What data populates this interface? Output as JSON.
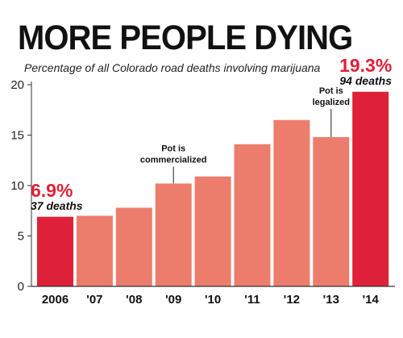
{
  "chart_data": {
    "type": "bar",
    "title": "MORE PEOPLE DYING",
    "subtitle": "Percentage of all Colorado road deaths involving marijuana",
    "categories": [
      "2006",
      "'07",
      "'08",
      "'09",
      "'10",
      "'11",
      "'12",
      "'13",
      "'14"
    ],
    "values": [
      6.9,
      7.0,
      7.8,
      10.2,
      10.9,
      14.1,
      16.5,
      14.8,
      19.3
    ],
    "highlighted": [
      true,
      false,
      false,
      false,
      false,
      false,
      false,
      false,
      true
    ],
    "ylim": [
      0,
      20
    ],
    "yticks": [
      "0",
      "5",
      "10",
      "15",
      "20"
    ],
    "xlabel": "",
    "ylabel": "",
    "grid": false,
    "colors": {
      "bar": "#ec7d6c",
      "highlight": "#de2138",
      "text": "#111111"
    },
    "callouts": [
      {
        "category_index": 0,
        "value_label": "6.9%",
        "deaths_label": "37 deaths"
      },
      {
        "category_index": 8,
        "value_label": "19.3%",
        "deaths_label": "94 deaths"
      }
    ],
    "annotations": [
      {
        "category_index": 3,
        "lines": [
          "Pot is",
          "commercialized"
        ]
      },
      {
        "category_index": 7,
        "lines": [
          "Pot is",
          "legalized"
        ]
      }
    ]
  }
}
